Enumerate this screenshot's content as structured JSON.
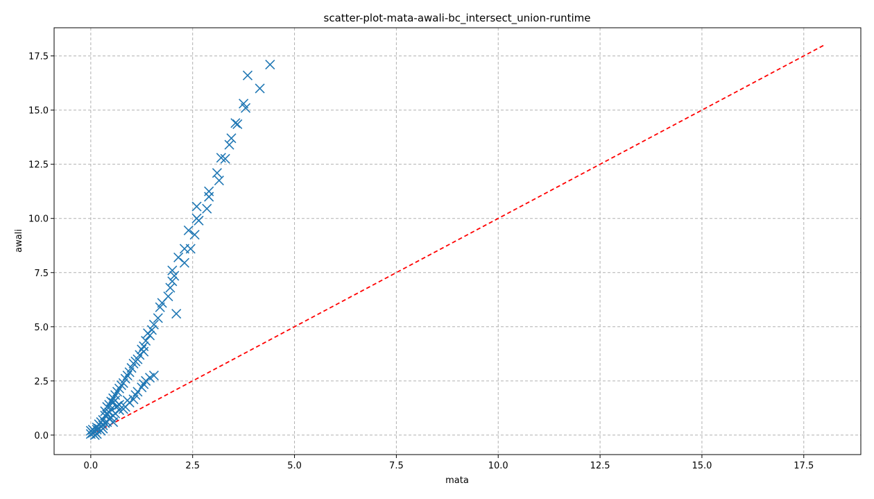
{
  "chart_data": {
    "type": "scatter",
    "title": "scatter-plot-mata-awali-bc_intersect_union-runtime",
    "xlabel": "mata",
    "ylabel": "awali",
    "xlim": [
      -0.9,
      18.9
    ],
    "ylim": [
      -0.9,
      18.8
    ],
    "xticks": [
      0.0,
      2.5,
      5.0,
      7.5,
      10.0,
      12.5,
      15.0,
      17.5
    ],
    "xtick_labels": [
      "0.0",
      "2.5",
      "5.0",
      "7.5",
      "10.0",
      "12.5",
      "15.0",
      "17.5"
    ],
    "yticks": [
      0.0,
      2.5,
      5.0,
      7.5,
      10.0,
      12.5,
      15.0,
      17.5
    ],
    "ytick_labels": [
      "0.0",
      "2.5",
      "5.0",
      "7.5",
      "10.0",
      "12.5",
      "15.0",
      "17.5"
    ],
    "grid": true,
    "marker": "x",
    "point_color": "#1f77b4",
    "reference_line": {
      "from": [
        0,
        0
      ],
      "to": [
        18,
        18
      ],
      "color": "#ff0000",
      "style": "dashed"
    },
    "points": [
      [
        4.4,
        17.1
      ],
      [
        3.85,
        16.6
      ],
      [
        4.15,
        16.0
      ],
      [
        3.75,
        15.3
      ],
      [
        3.8,
        15.1
      ],
      [
        3.55,
        14.4
      ],
      [
        3.6,
        14.35
      ],
      [
        3.45,
        13.7
      ],
      [
        3.4,
        13.4
      ],
      [
        3.2,
        12.8
      ],
      [
        3.3,
        12.75
      ],
      [
        3.1,
        12.1
      ],
      [
        3.15,
        11.75
      ],
      [
        2.9,
        11.25
      ],
      [
        2.9,
        11.0
      ],
      [
        2.6,
        10.55
      ],
      [
        2.85,
        10.45
      ],
      [
        2.6,
        10.0
      ],
      [
        2.65,
        9.9
      ],
      [
        2.4,
        9.45
      ],
      [
        2.55,
        9.25
      ],
      [
        2.3,
        8.6
      ],
      [
        2.45,
        8.6
      ],
      [
        2.15,
        8.2
      ],
      [
        2.3,
        7.95
      ],
      [
        2.0,
        7.6
      ],
      [
        2.05,
        7.35
      ],
      [
        2.0,
        7.1
      ],
      [
        1.95,
        6.8
      ],
      [
        1.9,
        6.4
      ],
      [
        1.75,
        6.1
      ],
      [
        1.7,
        5.9
      ],
      [
        2.1,
        5.6
      ],
      [
        1.65,
        5.4
      ],
      [
        1.55,
        5.1
      ],
      [
        1.5,
        4.85
      ],
      [
        1.45,
        4.6
      ],
      [
        1.4,
        4.7
      ],
      [
        1.35,
        4.35
      ],
      [
        1.3,
        4.1
      ],
      [
        1.25,
        3.95
      ],
      [
        1.3,
        3.85
      ],
      [
        1.2,
        3.7
      ],
      [
        1.15,
        3.5
      ],
      [
        1.1,
        3.4
      ],
      [
        1.0,
        3.1
      ],
      [
        1.05,
        3.3
      ],
      [
        0.95,
        2.9
      ],
      [
        0.9,
        2.75
      ],
      [
        0.85,
        2.6
      ],
      [
        0.8,
        2.4
      ],
      [
        0.75,
        2.3
      ],
      [
        0.7,
        2.15
      ],
      [
        0.65,
        2.0
      ],
      [
        0.6,
        1.85
      ],
      [
        0.55,
        1.7
      ],
      [
        0.5,
        1.55
      ],
      [
        0.45,
        1.4
      ],
      [
        0.4,
        1.3
      ],
      [
        0.35,
        1.1
      ],
      [
        1.55,
        2.75
      ],
      [
        1.45,
        2.65
      ],
      [
        1.35,
        2.5
      ],
      [
        1.3,
        2.35
      ],
      [
        1.25,
        2.2
      ],
      [
        1.15,
        2.0
      ],
      [
        1.1,
        1.85
      ],
      [
        1.05,
        1.65
      ],
      [
        0.95,
        1.5
      ],
      [
        0.9,
        1.6
      ],
      [
        0.85,
        1.3
      ],
      [
        0.8,
        1.2
      ],
      [
        0.7,
        1.15
      ],
      [
        0.65,
        1.35
      ],
      [
        0.6,
        1.0
      ],
      [
        0.55,
        0.9
      ],
      [
        0.5,
        0.8
      ],
      [
        0.45,
        0.75
      ],
      [
        0.4,
        0.6
      ],
      [
        0.35,
        0.55
      ],
      [
        0.3,
        0.45
      ],
      [
        0.25,
        0.4
      ],
      [
        0.2,
        0.3
      ],
      [
        0.15,
        0.25
      ],
      [
        0.1,
        0.15
      ],
      [
        0.05,
        0.1
      ],
      [
        0.0,
        0.2
      ],
      [
        0.0,
        0.05
      ],
      [
        0.15,
        0.05
      ],
      [
        0.2,
        0.5
      ],
      [
        0.3,
        0.7
      ],
      [
        0.25,
        0.6
      ],
      [
        0.35,
        0.9
      ],
      [
        0.4,
        0.95
      ],
      [
        0.45,
        1.05
      ],
      [
        0.5,
        1.2
      ],
      [
        0.55,
        1.5
      ],
      [
        0.6,
        1.6
      ],
      [
        0.1,
        0.0
      ],
      [
        0.25,
        0.2
      ],
      [
        0.3,
        0.3
      ],
      [
        0.55,
        0.6
      ],
      [
        0.7,
        1.4
      ],
      [
        0.15,
        0.35
      ],
      [
        0.05,
        0.25
      ]
    ]
  }
}
